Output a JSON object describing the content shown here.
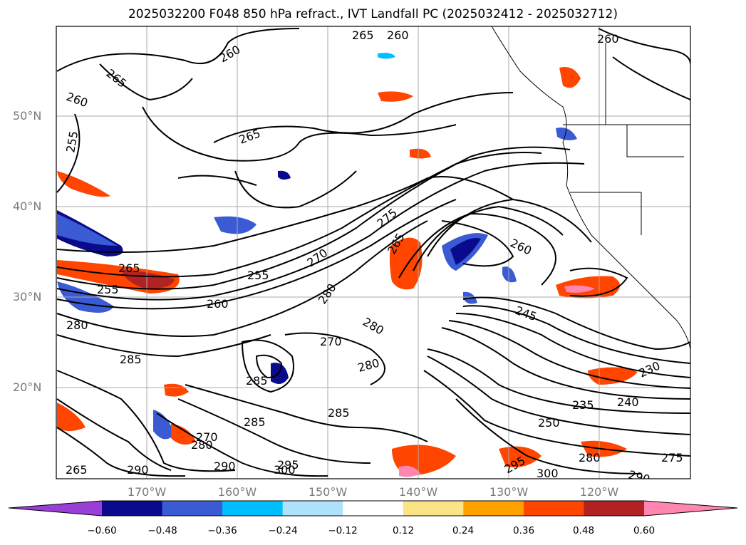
{
  "title": "2025032200 F048 850 hPa refract., IVT Landfall PC (2025032412 - 2025032712)",
  "map": {
    "lat_labels": [
      "50°N",
      "40°N",
      "30°N",
      "20°N"
    ],
    "lon_labels": [
      "170°W",
      "160°W",
      "150°W",
      "140°W",
      "130°W",
      "120°W"
    ],
    "contour_labels": [
      "265",
      "260",
      "260",
      "265",
      "260",
      "255",
      "260",
      "265",
      "275",
      "265",
      "260",
      "265",
      "255",
      "255",
      "270",
      "260",
      "280",
      "245",
      "280",
      "280",
      "285",
      "270",
      "280",
      "285",
      "230",
      "235",
      "240",
      "250",
      "270",
      "280",
      "275",
      "285",
      "290",
      "290",
      "300",
      "295",
      "300",
      "295",
      "285",
      "280",
      "265",
      "290"
    ]
  },
  "colorbar": {
    "tick_labels": [
      "−0.60",
      "−0.48",
      "−0.36",
      "−0.24",
      "−0.12",
      "0.12",
      "0.24",
      "0.36",
      "0.48",
      "0.60"
    ],
    "colors": [
      "#9a3fd6",
      "#0a0a8c",
      "#3a5bd4",
      "#00bfff",
      "#aee3fb",
      "#ffffff",
      "#fbe486",
      "#ffa200",
      "#ff4500",
      "#b22222",
      "#ff86b0"
    ]
  }
}
